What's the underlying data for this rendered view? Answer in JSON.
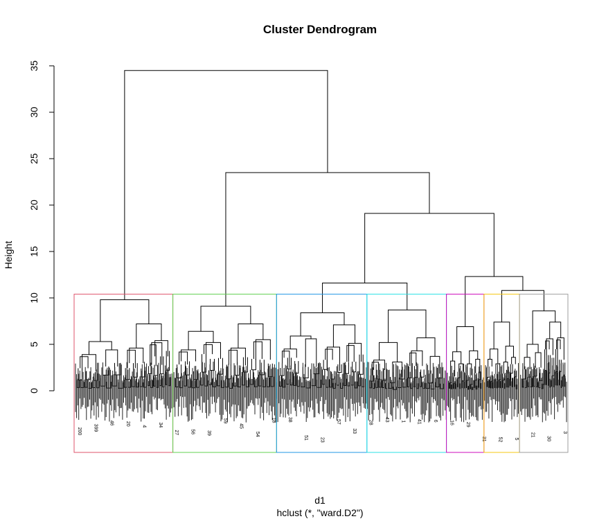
{
  "chart_data": {
    "type": "dendrogram",
    "title": "Cluster Dendrogram",
    "ylabel": "Height",
    "xlabel": "d1",
    "sub": "hclust (*, \"ward.D2\")",
    "ylim": [
      0,
      35
    ],
    "yticks": [
      0,
      5,
      10,
      15,
      20,
      25,
      30,
      35
    ],
    "cut_height": 10.4,
    "leaf_count": 450,
    "merges": [
      {
        "name": "root",
        "height": 34.5,
        "left": "c1",
        "right": "rest"
      },
      {
        "name": "rest",
        "height": 23.5,
        "left": "c2",
        "right": "rest2"
      },
      {
        "name": "rest2",
        "height": 19.1,
        "left": "grp345",
        "right": "grp567"
      },
      {
        "name": "grp345",
        "height": 11.6,
        "left": "c3",
        "right": "c4"
      },
      {
        "name": "grp567",
        "height": 12.3,
        "left": "c5",
        "right": "grp67"
      },
      {
        "name": "grp67",
        "height": 10.8,
        "left": "c6",
        "right": "c7"
      }
    ],
    "clusters": [
      {
        "id": "c1",
        "color": "#df536b",
        "x_start": 0.0,
        "x_end": 0.2,
        "height": 9.8,
        "subtree": {
          "h": 9.8,
          "l": {
            "h": 5.3,
            "l": {
              "h": 3.9,
              "n": 3
            },
            "r": {
              "h": 4.4,
              "n": 2
            }
          },
          "r": {
            "h": 7.2,
            "l": {
              "h": 4.6,
              "n": 3
            },
            "r": {
              "h": 5.4,
              "n": 4
            }
          }
        }
      },
      {
        "id": "c2",
        "color": "#61d04f",
        "x_start": 0.2,
        "x_end": 0.41,
        "height": 9.1,
        "subtree": {
          "h": 9.1,
          "l": {
            "h": 6.4,
            "l": {
              "h": 4.4,
              "n": 3
            },
            "r": {
              "h": 5.2,
              "n": 3
            }
          },
          "r": {
            "h": 7.2,
            "l": {
              "h": 4.6,
              "n": 3
            },
            "r": {
              "h": 5.5,
              "n": 3
            }
          }
        }
      },
      {
        "id": "c3",
        "color": "#2297e6",
        "x_start": 0.41,
        "x_end": 0.593,
        "height": 8.4,
        "subtree": {
          "h": 8.4,
          "l": {
            "h": 5.9,
            "l": {
              "h": 4.5,
              "n": 3
            },
            "r": {
              "h": 5.6,
              "n": 2
            }
          },
          "r": {
            "h": 7.1,
            "l": {
              "h": 4.7,
              "n": 3
            },
            "r": {
              "h": 5.1,
              "n": 3
            }
          }
        }
      },
      {
        "id": "c4",
        "color": "#28e2e5",
        "x_start": 0.593,
        "x_end": 0.754,
        "height": 8.7,
        "subtree": {
          "h": 8.7,
          "l": {
            "h": 5.2,
            "l": {
              "h": 3.3,
              "n": 3
            },
            "r": {
              "h": 3.1,
              "n": 2
            }
          },
          "r": {
            "h": 5.7,
            "l": {
              "h": 4.3,
              "n": 3
            },
            "r": {
              "h": 3.7,
              "n": 2
            }
          }
        }
      },
      {
        "id": "c5",
        "color": "#cd0bbc",
        "x_start": 0.754,
        "x_end": 0.83,
        "height": 6.9,
        "subtree": {
          "h": 6.9,
          "l": {
            "h": 4.2,
            "l": {
              "h": 3.2,
              "n": 2
            },
            "r": {
              "h": 2.9,
              "n": 2
            }
          },
          "r": {
            "h": 4.3,
            "l": {
              "h": 2.9,
              "n": 2
            },
            "r": {
              "h": 3.4,
              "n": 2
            }
          }
        }
      },
      {
        "id": "c6",
        "color": "#f5c710",
        "x_start": 0.83,
        "x_end": 0.902,
        "height": 7.4,
        "subtree": {
          "h": 7.4,
          "l": {
            "h": 4.5,
            "l": {
              "h": 3.4,
              "n": 2
            },
            "r": {
              "h": 2.9,
              "n": 2
            }
          },
          "r": {
            "h": 4.8,
            "l": {
              "h": 3.1,
              "n": 2
            },
            "r": {
              "h": 3.6,
              "n": 2
            }
          }
        }
      },
      {
        "id": "c7",
        "color": "#9e9e9e",
        "x_start": 0.902,
        "x_end": 1.0,
        "height": 8.6,
        "subtree": {
          "h": 8.6,
          "l": {
            "h": 5.0,
            "l": {
              "h": 3.6,
              "n": 2
            },
            "r": {
              "h": 4.1,
              "n": 2
            }
          },
          "r": {
            "h": 7.4,
            "l": {
              "h": 5.6,
              "n": 3
            },
            "r": {
              "h": 5.7,
              "n": 3
            }
          }
        }
      }
    ],
    "visible_leaf_labels": [
      "200",
      "399",
      "46",
      "20",
      "4",
      "34",
      "27",
      "56",
      "39",
      "59",
      "45",
      "54",
      "18",
      "38",
      "51",
      "23",
      "57",
      "33",
      "28",
      "43",
      "1",
      "41",
      "6",
      "16",
      "29",
      "31",
      "52",
      "5",
      "21",
      "30",
      "3"
    ]
  }
}
